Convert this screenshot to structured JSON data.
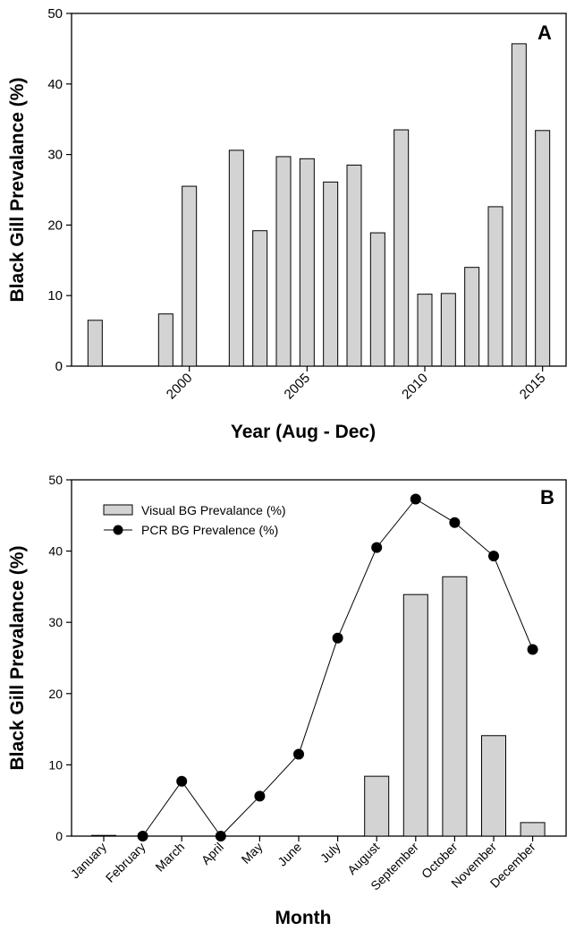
{
  "chart_data": [
    {
      "type": "bar",
      "panel_label": "A",
      "xlabel": "Year (Aug - Dec)",
      "ylabel": "Black Gill Prevalance (%)",
      "ylim": [
        0,
        50
      ],
      "yticks": [
        0,
        10,
        20,
        30,
        40,
        50
      ],
      "xlim": [
        1995,
        2016
      ],
      "xticks": [
        2000,
        2005,
        2010,
        2015
      ],
      "x": [
        1996,
        1999,
        2000,
        2002,
        2003,
        2004,
        2005,
        2006,
        2007,
        2008,
        2009,
        2010,
        2011,
        2012,
        2013,
        2014,
        2015
      ],
      "values": [
        6.5,
        7.4,
        25.5,
        30.6,
        19.2,
        29.7,
        29.4,
        26.1,
        28.5,
        18.9,
        33.5,
        10.2,
        10.3,
        14.0,
        22.6,
        45.7,
        33.4
      ],
      "grid": false
    },
    {
      "type": "bar+line",
      "panel_label": "B",
      "xlabel": "Month",
      "ylabel": "Black Gill Prevalance (%)",
      "ylim": [
        0,
        50
      ],
      "yticks": [
        0,
        10,
        20,
        30,
        40,
        50
      ],
      "categories": [
        "January",
        "February",
        "March",
        "April",
        "May",
        "June",
        "July",
        "August",
        "September",
        "October",
        "November",
        "December"
      ],
      "series": [
        {
          "name": "Visual BG Prevalance (%)",
          "kind": "bar",
          "values": [
            0.1,
            null,
            null,
            null,
            null,
            null,
            null,
            8.4,
            33.9,
            36.4,
            14.1,
            1.9
          ]
        },
        {
          "name": "PCR BG Prevalence (%)",
          "kind": "line",
          "values": [
            null,
            0.0,
            7.7,
            0.0,
            5.6,
            11.5,
            27.8,
            40.5,
            47.3,
            44.0,
            39.3,
            26.2
          ]
        }
      ],
      "legend_position": "top-left",
      "grid": false
    }
  ]
}
